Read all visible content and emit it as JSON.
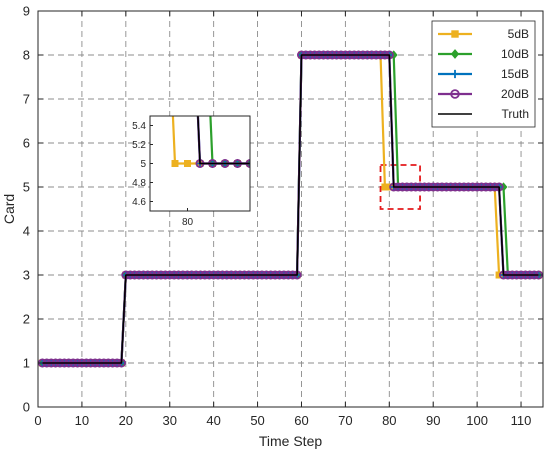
{
  "chart_data": {
    "type": "line",
    "title": "",
    "xlabel": "Time Step",
    "ylabel": "Card",
    "xlim": [
      0,
      115
    ],
    "ylim": [
      0,
      9
    ],
    "xticks": [
      0,
      10,
      20,
      30,
      40,
      50,
      60,
      70,
      80,
      90,
      100,
      110
    ],
    "yticks": [
      0,
      1,
      2,
      3,
      4,
      5,
      6,
      7,
      8,
      9
    ],
    "grid": true,
    "legend_position": "top-right",
    "series": [
      {
        "name": "5dB",
        "color": "#EDB120",
        "marker": "square",
        "segments": [
          [
            1,
            19,
            1
          ],
          [
            20,
            59,
            3
          ],
          [
            60,
            78,
            8
          ],
          [
            79,
            104,
            5
          ],
          [
            105,
            114,
            3
          ]
        ]
      },
      {
        "name": "10dB",
        "color": "#2CA02C",
        "marker": "diamond",
        "segments": [
          [
            1,
            19,
            1
          ],
          [
            20,
            59,
            3
          ],
          [
            60,
            81,
            8
          ],
          [
            82,
            106,
            5
          ],
          [
            107,
            114,
            3
          ]
        ]
      },
      {
        "name": "15dB",
        "color": "#0072BD",
        "marker": "plus",
        "segments": [
          [
            1,
            19,
            1
          ],
          [
            20,
            59,
            3
          ],
          [
            60,
            80,
            8
          ],
          [
            81,
            105,
            5
          ],
          [
            106,
            114,
            3
          ]
        ]
      },
      {
        "name": "20dB",
        "color": "#7E2F8E",
        "marker": "circle",
        "segments": [
          [
            1,
            19,
            1
          ],
          [
            20,
            59,
            3
          ],
          [
            60,
            80,
            8
          ],
          [
            81,
            105,
            5
          ],
          [
            106,
            114,
            3
          ]
        ]
      },
      {
        "name": "Truth",
        "color": "#000000",
        "marker": "none",
        "segments": [
          [
            1,
            19,
            1
          ],
          [
            20,
            59,
            3
          ],
          [
            60,
            80,
            8
          ],
          [
            81,
            105,
            5
          ],
          [
            106,
            114,
            3
          ]
        ]
      }
    ],
    "inset": {
      "xlim": [
        77,
        85
      ],
      "ylim": [
        4.5,
        5.5
      ],
      "xticks": [
        80
      ],
      "yticks": [
        4.6,
        4.8,
        5,
        5.2,
        5.4
      ],
      "highlight_box": {
        "x": [
          78,
          87
        ],
        "y": [
          4.5,
          5.5
        ],
        "color": "#E41A1C"
      }
    }
  }
}
